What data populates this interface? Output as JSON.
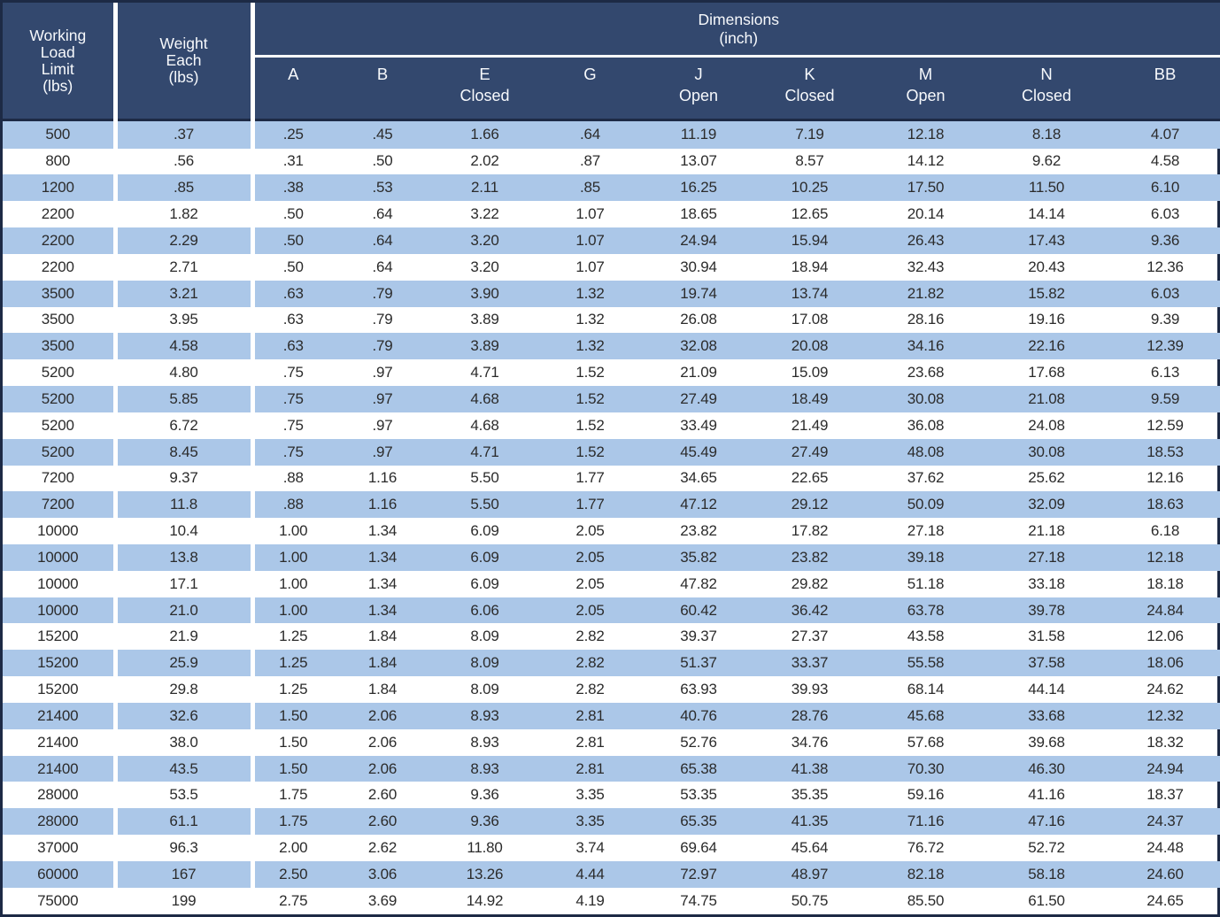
{
  "table": {
    "header": {
      "working_load_limit": "Working\nLoad\nLimit\n(lbs)",
      "weight_each": "Weight\nEach\n(lbs)",
      "dimensions_title": "Dimensions\n(inch)",
      "dim_columns": [
        {
          "label": "A",
          "sub": ""
        },
        {
          "label": "B",
          "sub": ""
        },
        {
          "label": "E",
          "sub": "Closed"
        },
        {
          "label": "G",
          "sub": ""
        },
        {
          "label": "J",
          "sub": "Open"
        },
        {
          "label": "K",
          "sub": "Closed"
        },
        {
          "label": "M",
          "sub": "Open"
        },
        {
          "label": "N",
          "sub": "Closed"
        },
        {
          "label": "BB",
          "sub": ""
        }
      ]
    },
    "column_keys": [
      "wll",
      "weight",
      "a",
      "b",
      "e",
      "g",
      "j",
      "k",
      "m",
      "n",
      "bb"
    ],
    "rows": [
      [
        "500",
        ".37",
        ".25",
        ".45",
        "1.66",
        ".64",
        "11.19",
        "7.19",
        "12.18",
        "8.18",
        "4.07"
      ],
      [
        "800",
        ".56",
        ".31",
        ".50",
        "2.02",
        ".87",
        "13.07",
        "8.57",
        "14.12",
        "9.62",
        "4.58"
      ],
      [
        "1200",
        ".85",
        ".38",
        ".53",
        "2.11",
        ".85",
        "16.25",
        "10.25",
        "17.50",
        "11.50",
        "6.10"
      ],
      [
        "2200",
        "1.82",
        ".50",
        ".64",
        "3.22",
        "1.07",
        "18.65",
        "12.65",
        "20.14",
        "14.14",
        "6.03"
      ],
      [
        "2200",
        "2.29",
        ".50",
        ".64",
        "3.20",
        "1.07",
        "24.94",
        "15.94",
        "26.43",
        "17.43",
        "9.36"
      ],
      [
        "2200",
        "2.71",
        ".50",
        ".64",
        "3.20",
        "1.07",
        "30.94",
        "18.94",
        "32.43",
        "20.43",
        "12.36"
      ],
      [
        "3500",
        "3.21",
        ".63",
        ".79",
        "3.90",
        "1.32",
        "19.74",
        "13.74",
        "21.82",
        "15.82",
        "6.03"
      ],
      [
        "3500",
        "3.95",
        ".63",
        ".79",
        "3.89",
        "1.32",
        "26.08",
        "17.08",
        "28.16",
        "19.16",
        "9.39"
      ],
      [
        "3500",
        "4.58",
        ".63",
        ".79",
        "3.89",
        "1.32",
        "32.08",
        "20.08",
        "34.16",
        "22.16",
        "12.39"
      ],
      [
        "5200",
        "4.80",
        ".75",
        ".97",
        "4.71",
        "1.52",
        "21.09",
        "15.09",
        "23.68",
        "17.68",
        "6.13"
      ],
      [
        "5200",
        "5.85",
        ".75",
        ".97",
        "4.68",
        "1.52",
        "27.49",
        "18.49",
        "30.08",
        "21.08",
        "9.59"
      ],
      [
        "5200",
        "6.72",
        ".75",
        ".97",
        "4.68",
        "1.52",
        "33.49",
        "21.49",
        "36.08",
        "24.08",
        "12.59"
      ],
      [
        "5200",
        "8.45",
        ".75",
        ".97",
        "4.71",
        "1.52",
        "45.49",
        "27.49",
        "48.08",
        "30.08",
        "18.53"
      ],
      [
        "7200",
        "9.37",
        ".88",
        "1.16",
        "5.50",
        "1.77",
        "34.65",
        "22.65",
        "37.62",
        "25.62",
        "12.16"
      ],
      [
        "7200",
        "11.8",
        ".88",
        "1.16",
        "5.50",
        "1.77",
        "47.12",
        "29.12",
        "50.09",
        "32.09",
        "18.63"
      ],
      [
        "10000",
        "10.4",
        "1.00",
        "1.34",
        "6.09",
        "2.05",
        "23.82",
        "17.82",
        "27.18",
        "21.18",
        "6.18"
      ],
      [
        "10000",
        "13.8",
        "1.00",
        "1.34",
        "6.09",
        "2.05",
        "35.82",
        "23.82",
        "39.18",
        "27.18",
        "12.18"
      ],
      [
        "10000",
        "17.1",
        "1.00",
        "1.34",
        "6.09",
        "2.05",
        "47.82",
        "29.82",
        "51.18",
        "33.18",
        "18.18"
      ],
      [
        "10000",
        "21.0",
        "1.00",
        "1.34",
        "6.06",
        "2.05",
        "60.42",
        "36.42",
        "63.78",
        "39.78",
        "24.84"
      ],
      [
        "15200",
        "21.9",
        "1.25",
        "1.84",
        "8.09",
        "2.82",
        "39.37",
        "27.37",
        "43.58",
        "31.58",
        "12.06"
      ],
      [
        "15200",
        "25.9",
        "1.25",
        "1.84",
        "8.09",
        "2.82",
        "51.37",
        "33.37",
        "55.58",
        "37.58",
        "18.06"
      ],
      [
        "15200",
        "29.8",
        "1.25",
        "1.84",
        "8.09",
        "2.82",
        "63.93",
        "39.93",
        "68.14",
        "44.14",
        "24.62"
      ],
      [
        "21400",
        "32.6",
        "1.50",
        "2.06",
        "8.93",
        "2.81",
        "40.76",
        "28.76",
        "45.68",
        "33.68",
        "12.32"
      ],
      [
        "21400",
        "38.0",
        "1.50",
        "2.06",
        "8.93",
        "2.81",
        "52.76",
        "34.76",
        "57.68",
        "39.68",
        "18.32"
      ],
      [
        "21400",
        "43.5",
        "1.50",
        "2.06",
        "8.93",
        "2.81",
        "65.38",
        "41.38",
        "70.30",
        "46.30",
        "24.94"
      ],
      [
        "28000",
        "53.5",
        "1.75",
        "2.60",
        "9.36",
        "3.35",
        "53.35",
        "35.35",
        "59.16",
        "41.16",
        "18.37"
      ],
      [
        "28000",
        "61.1",
        "1.75",
        "2.60",
        "9.36",
        "3.35",
        "65.35",
        "41.35",
        "71.16",
        "47.16",
        "24.37"
      ],
      [
        "37000",
        "96.3",
        "2.00",
        "2.62",
        "11.80",
        "3.74",
        "69.64",
        "45.64",
        "76.72",
        "52.72",
        "24.48"
      ],
      [
        "60000",
        "167",
        "2.50",
        "3.06",
        "13.26",
        "4.44",
        "72.97",
        "48.97",
        "82.18",
        "58.18",
        "24.60"
      ],
      [
        "75000",
        "199",
        "2.75",
        "3.69",
        "14.92",
        "4.19",
        "74.75",
        "50.75",
        "85.50",
        "61.50",
        "24.65"
      ]
    ]
  },
  "colors": {
    "header_navy": "#33486e",
    "row_blue": "#abc7e8",
    "row_white": "#ffffff",
    "border_dark": "#1d2a45",
    "separator_white": "#ffffff",
    "data_text": "#2b2b2b",
    "header_text": "#f7f9fc"
  }
}
